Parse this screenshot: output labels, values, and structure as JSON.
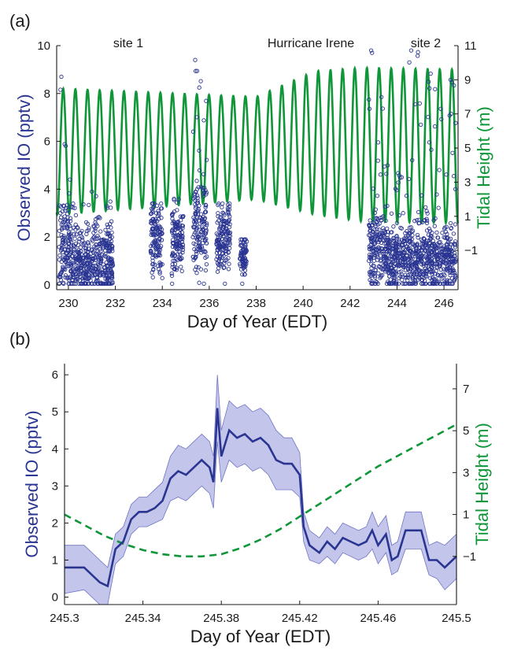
{
  "colors": {
    "io": "#2a3592",
    "tide": "#0f9638",
    "band_fill": "#b9bce6",
    "axis": "#1a1a1a"
  },
  "chart_data": [
    {
      "panel": "(a)",
      "type": "scatter",
      "xlabel": "Day of Year (EDT)",
      "ylabel_left": "Observed IO (pptv)",
      "ylabel_right": "Tidal Height (m)",
      "xlim": [
        229.5,
        246.6
      ],
      "ylim_left": [
        -0.2,
        10
      ],
      "ylim_right": [
        -3.3,
        11
      ],
      "xticks": [
        230,
        232,
        234,
        236,
        238,
        240,
        242,
        244,
        246
      ],
      "yticks_left": [
        0,
        2,
        4,
        6,
        8,
        10
      ],
      "yticks_right": [
        -1,
        1,
        3,
        5,
        7,
        9,
        11
      ],
      "annotations": [
        "site 1",
        "Hurricane Irene",
        "site 2"
      ],
      "series": [
        {
          "name": "Observed IO",
          "style": "open circles",
          "axis": "left",
          "segments": [
            {
              "x_range": [
                229.6,
                230.1
              ],
              "center": 1.5,
              "spread": 1.6,
              "max": 8.7
            },
            {
              "x_range": [
                230.1,
                230.9
              ],
              "center": 1.0,
              "spread": 1.2,
              "max": 3.4
            },
            {
              "x_range": [
                230.9,
                231.9
              ],
              "center": 0.9,
              "spread": 1.4,
              "max": 3.9
            },
            {
              "x_range": [
                233.5,
                234.0
              ],
              "center": 2.0,
              "spread": 1.3,
              "max": 3.4
            },
            {
              "x_range": [
                234.4,
                234.9
              ],
              "center": 1.8,
              "spread": 1.3,
              "max": 3.6
            },
            {
              "x_range": [
                235.3,
                235.9
              ],
              "center": 2.6,
              "spread": 1.8,
              "max": 9.4
            },
            {
              "x_range": [
                236.3,
                236.9
              ],
              "center": 2.0,
              "spread": 1.3,
              "max": 3.4
            },
            {
              "x_range": [
                237.3,
                237.6
              ],
              "center": 1.2,
              "spread": 0.8,
              "max": 1.9
            },
            {
              "x_range": [
                242.8,
                243.5
              ],
              "center": 1.5,
              "spread": 1.4,
              "max": 9.8
            },
            {
              "x_range": [
                243.5,
                244.5
              ],
              "center": 1.1,
              "spread": 1.2,
              "max": 5.0
            },
            {
              "x_range": [
                244.5,
                246.5
              ],
              "center": 1.1,
              "spread": 1.3,
              "max": 9.8
            }
          ]
        },
        {
          "name": "Tidal Height",
          "style": "solid line",
          "axis": "right",
          "period_days": 0.5175,
          "phase_peak_day": 229.78,
          "amplitude_m": [
            [
              229.5,
              3.7
            ],
            [
              238.0,
              3.0
            ],
            [
              240.5,
              4.2
            ],
            [
              242.5,
              4.5
            ],
            [
              246.6,
              4.5
            ]
          ],
          "mean_m": [
            [
              229.5,
              4.8
            ],
            [
              238.0,
              5.0
            ],
            [
              240.5,
              5.3
            ],
            [
              242.5,
              5.2
            ],
            [
              246.6,
              5.1
            ]
          ]
        }
      ]
    },
    {
      "panel": "(b)",
      "type": "line",
      "xlabel": "Day of Year (EDT)",
      "ylabel_left": "Observed IO (pptv)",
      "ylabel_right": "Tidal Height (m)",
      "xlim": [
        245.3,
        245.5
      ],
      "ylim_left": [
        -0.2,
        6.3
      ],
      "ylim_right": [
        -3.3,
        8.2
      ],
      "xticks": [
        245.3,
        245.34,
        245.38,
        245.42,
        245.46,
        245.5
      ],
      "yticks_left": [
        0,
        1,
        2,
        3,
        4,
        5,
        6
      ],
      "yticks_right": [
        -1,
        1,
        3,
        5,
        7
      ],
      "series": [
        {
          "name": "Observed IO",
          "style": "solid line with shaded uncertainty band",
          "axis": "left",
          "x": [
            245.3,
            245.31,
            245.318,
            245.322,
            245.326,
            245.33,
            245.334,
            245.338,
            245.342,
            245.346,
            245.35,
            245.354,
            245.358,
            245.362,
            245.366,
            245.37,
            245.374,
            245.376,
            245.378,
            245.38,
            245.384,
            245.388,
            245.392,
            245.396,
            245.4,
            245.404,
            245.408,
            245.412,
            245.416,
            245.42,
            245.422,
            245.425,
            245.43,
            245.434,
            245.438,
            245.442,
            245.446,
            245.45,
            245.454,
            245.457,
            245.46,
            245.464,
            245.467,
            245.47,
            245.474,
            245.478,
            245.482,
            245.486,
            245.49,
            245.494,
            245.498,
            245.5
          ],
          "y": [
            0.8,
            0.8,
            0.4,
            0.3,
            1.3,
            1.5,
            2.1,
            2.3,
            2.3,
            2.4,
            2.6,
            3.2,
            3.4,
            3.3,
            3.5,
            3.7,
            3.5,
            3.1,
            5.1,
            3.8,
            4.5,
            4.3,
            4.4,
            4.2,
            4.3,
            4.1,
            3.7,
            3.6,
            3.6,
            3.3,
            1.9,
            1.4,
            1.2,
            1.5,
            1.3,
            1.6,
            1.5,
            1.4,
            1.5,
            1.8,
            1.4,
            1.7,
            1.0,
            1.1,
            1.8,
            1.8,
            1.8,
            1.0,
            1.0,
            0.8,
            1.0,
            1.1
          ],
          "lower": [
            0.1,
            0.2,
            -0.2,
            -0.2,
            0.9,
            1.1,
            1.7,
            1.9,
            1.9,
            2.0,
            2.1,
            2.6,
            2.7,
            2.6,
            2.8,
            3.0,
            2.8,
            2.4,
            4.2,
            3.1,
            3.7,
            3.5,
            3.6,
            3.4,
            3.5,
            3.3,
            2.9,
            2.9,
            2.9,
            2.7,
            1.5,
            1.0,
            0.9,
            1.1,
            0.9,
            1.2,
            1.1,
            1.0,
            1.1,
            1.3,
            0.9,
            1.2,
            0.6,
            0.7,
            1.3,
            1.3,
            1.3,
            0.6,
            0.5,
            0.2,
            0.4,
            0.5
          ],
          "upper": [
            1.4,
            1.4,
            1.0,
            0.8,
            1.7,
            1.9,
            2.5,
            2.7,
            2.7,
            2.9,
            3.1,
            3.8,
            4.1,
            4.0,
            4.2,
            4.4,
            4.2,
            3.8,
            6.0,
            4.5,
            5.3,
            5.1,
            5.2,
            5.0,
            5.1,
            4.9,
            4.5,
            4.3,
            4.3,
            3.9,
            2.3,
            1.8,
            1.6,
            1.9,
            1.7,
            2.0,
            1.9,
            1.8,
            1.9,
            2.3,
            1.9,
            2.2,
            1.4,
            1.5,
            2.3,
            2.3,
            2.3,
            1.4,
            1.5,
            1.4,
            1.6,
            1.7
          ]
        },
        {
          "name": "Tidal Height",
          "style": "dashed line",
          "axis": "right",
          "x": [
            245.3,
            245.31,
            245.32,
            245.33,
            245.34,
            245.35,
            245.36,
            245.37,
            245.38,
            245.39,
            245.4,
            245.41,
            245.42,
            245.43,
            245.44,
            245.45,
            245.46,
            245.47,
            245.48,
            245.49,
            245.5
          ],
          "y": [
            1.0,
            0.5,
            0.0,
            -0.4,
            -0.7,
            -0.9,
            -1.0,
            -1.0,
            -0.9,
            -0.6,
            -0.2,
            0.3,
            0.9,
            1.5,
            2.1,
            2.7,
            3.3,
            3.8,
            4.3,
            4.8,
            5.3
          ]
        }
      ]
    }
  ]
}
